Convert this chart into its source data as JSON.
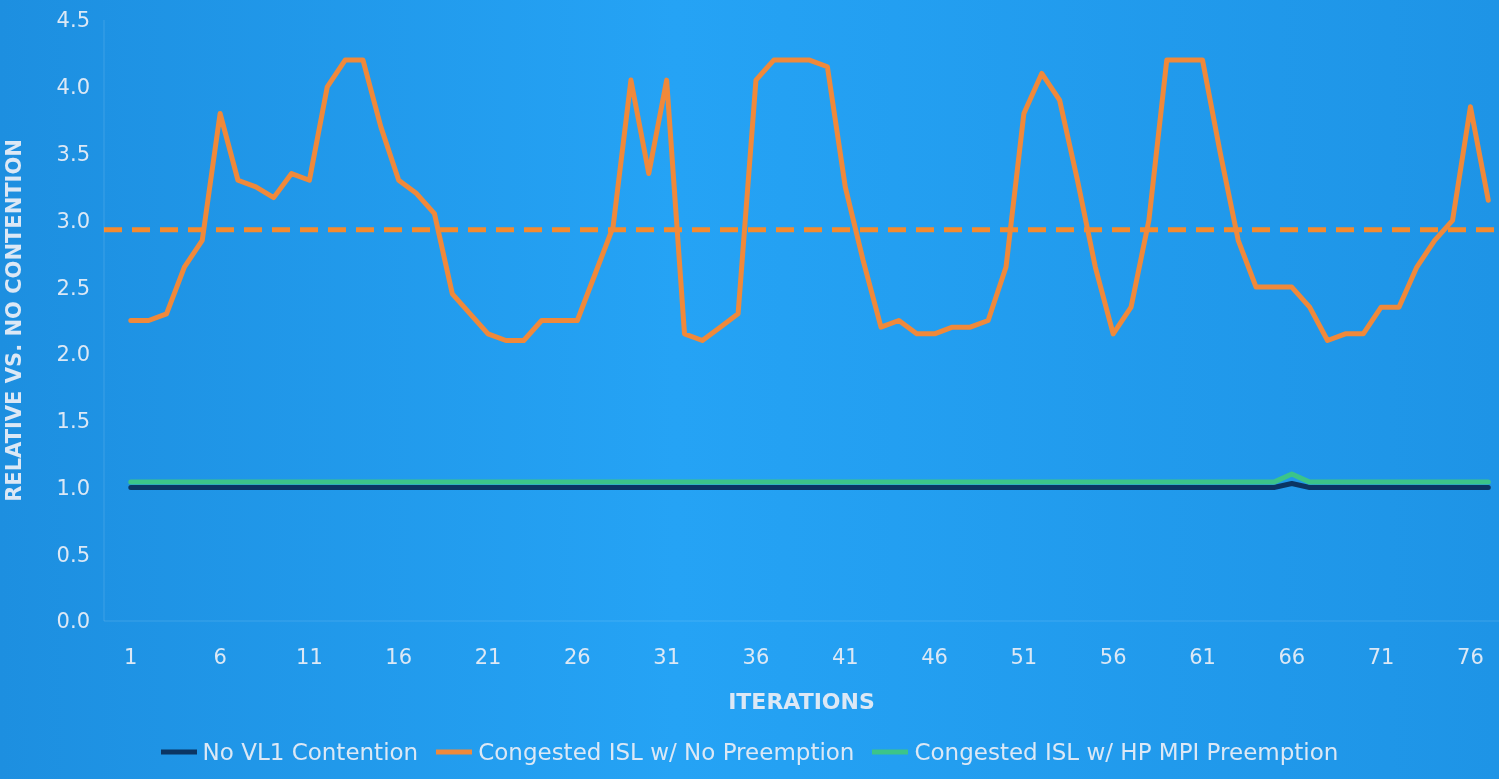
{
  "chart_data": {
    "type": "line",
    "xlabel": "ITERATIONS",
    "ylabel": "RELATIVE VS. NO CONTENTION",
    "x": [
      1,
      2,
      3,
      4,
      5,
      6,
      7,
      8,
      9,
      10,
      11,
      12,
      13,
      14,
      15,
      16,
      17,
      18,
      19,
      20,
      21,
      22,
      23,
      24,
      25,
      26,
      27,
      28,
      29,
      30,
      31,
      32,
      33,
      34,
      35,
      36,
      37,
      38,
      39,
      40,
      41,
      42,
      43,
      44,
      45,
      46,
      47,
      48,
      49,
      50,
      51,
      52,
      53,
      54,
      55,
      56,
      57,
      58,
      59,
      60,
      61,
      62,
      63,
      64,
      65,
      66,
      67,
      68,
      69,
      70,
      71,
      72,
      73,
      74,
      75,
      76,
      77
    ],
    "series": [
      {
        "name": "No VL1 Contention",
        "color": "#0b3563",
        "values": [
          1.0,
          1.0,
          1.0,
          1.0,
          1.0,
          1.0,
          1.0,
          1.0,
          1.0,
          1.0,
          1.0,
          1.0,
          1.0,
          1.0,
          1.0,
          1.0,
          1.0,
          1.0,
          1.0,
          1.0,
          1.0,
          1.0,
          1.0,
          1.0,
          1.0,
          1.0,
          1.0,
          1.0,
          1.0,
          1.0,
          1.0,
          1.0,
          1.0,
          1.0,
          1.0,
          1.0,
          1.0,
          1.0,
          1.0,
          1.0,
          1.0,
          1.0,
          1.0,
          1.0,
          1.0,
          1.0,
          1.0,
          1.0,
          1.0,
          1.0,
          1.0,
          1.0,
          1.0,
          1.0,
          1.0,
          1.0,
          1.0,
          1.0,
          1.0,
          1.0,
          1.0,
          1.0,
          1.0,
          1.0,
          1.0,
          1.03,
          1.0,
          1.0,
          1.0,
          1.0,
          1.0,
          1.0,
          1.0,
          1.0,
          1.0,
          1.0,
          1.0
        ]
      },
      {
        "name": "Congested ISL w/ No Preemption",
        "color": "#f0893a",
        "values": [
          2.25,
          2.25,
          2.3,
          2.65,
          2.85,
          3.8,
          3.3,
          3.25,
          3.17,
          3.35,
          3.3,
          4.0,
          4.2,
          4.2,
          3.7,
          3.3,
          3.2,
          3.05,
          2.45,
          2.3,
          2.15,
          2.1,
          2.1,
          2.25,
          2.25,
          2.25,
          2.6,
          2.95,
          4.05,
          3.35,
          4.05,
          2.15,
          2.1,
          2.2,
          2.3,
          4.05,
          4.2,
          4.2,
          4.2,
          4.15,
          3.25,
          2.7,
          2.2,
          2.25,
          2.15,
          2.15,
          2.2,
          2.2,
          2.25,
          2.65,
          3.8,
          4.1,
          3.9,
          3.3,
          2.65,
          2.15,
          2.35,
          3.0,
          4.2,
          4.2,
          4.2,
          3.5,
          2.85,
          2.5,
          2.5,
          2.5,
          2.35,
          2.1,
          2.15,
          2.15,
          2.35,
          2.35,
          2.65,
          2.85,
          3.0,
          3.85,
          3.15
        ]
      },
      {
        "name": "Congested ISL w/ HP MPI Preemption",
        "color": "#3cc489",
        "values": [
          1.04,
          1.04,
          1.04,
          1.04,
          1.04,
          1.04,
          1.04,
          1.04,
          1.04,
          1.04,
          1.04,
          1.04,
          1.04,
          1.04,
          1.04,
          1.04,
          1.04,
          1.04,
          1.04,
          1.04,
          1.04,
          1.04,
          1.04,
          1.04,
          1.04,
          1.04,
          1.04,
          1.04,
          1.04,
          1.04,
          1.04,
          1.04,
          1.04,
          1.04,
          1.04,
          1.04,
          1.04,
          1.04,
          1.04,
          1.04,
          1.04,
          1.04,
          1.04,
          1.04,
          1.04,
          1.04,
          1.04,
          1.04,
          1.04,
          1.04,
          1.04,
          1.04,
          1.04,
          1.04,
          1.04,
          1.04,
          1.04,
          1.04,
          1.04,
          1.04,
          1.04,
          1.04,
          1.04,
          1.04,
          1.04,
          1.1,
          1.04,
          1.04,
          1.04,
          1.04,
          1.04,
          1.04,
          1.04,
          1.04,
          1.04,
          1.04,
          1.04
        ]
      }
    ],
    "xlim": [
      -0.5,
      77.6
    ],
    "xticks": [
      1,
      6,
      11,
      16,
      21,
      26,
      31,
      36,
      41,
      46,
      51,
      56,
      61,
      66,
      71,
      76
    ],
    "ylim": [
      0,
      4.5
    ],
    "yticks": [
      {
        "value": 0,
        "label": "0.0"
      },
      0.5,
      {
        "value": 1,
        "label": "1.0"
      },
      1.5,
      {
        "value": 2,
        "label": "2.0"
      },
      2.5,
      {
        "value": 3,
        "label": "3.0"
      },
      3.5,
      {
        "value": 4,
        "label": "4.0"
      },
      4.5
    ],
    "ref_lines": [
      {
        "axis": "y",
        "value": 2.93,
        "color": "#f58a2e",
        "line_style": "dashed"
      }
    ],
    "legend": "bottom",
    "marker": "none",
    "line_style": "solid",
    "grid": false
  }
}
